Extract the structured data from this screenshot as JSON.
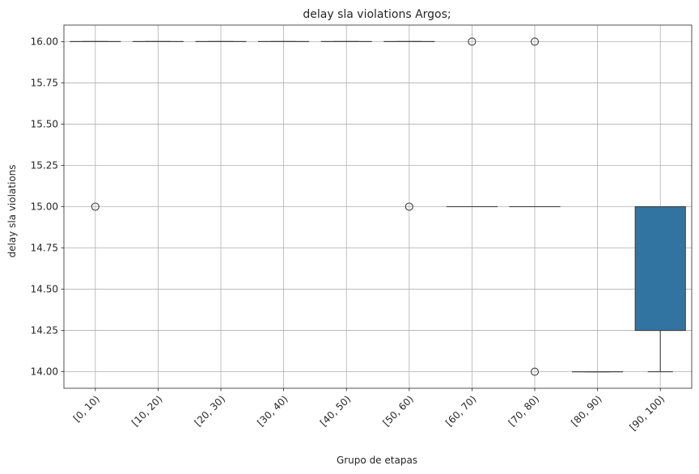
{
  "chart_data": {
    "type": "box",
    "title": "delay sla violations Argos;",
    "xlabel": "Grupo de etapas",
    "ylabel": "delay sla violations",
    "categories": [
      "[0, 10)",
      "[10, 20)",
      "[20, 30)",
      "[30, 40)",
      "[40, 50)",
      "[50, 60)",
      "[60, 70)",
      "[70, 80)",
      "[80, 90)",
      "[90, 100)"
    ],
    "yticks": [
      "14.00",
      "14.25",
      "14.50",
      "14.75",
      "15.00",
      "15.25",
      "15.50",
      "15.75",
      "16.00"
    ],
    "ylim": [
      13.9,
      16.1
    ],
    "grid": true,
    "box_color": "#3274a1",
    "boxes": [
      {
        "category": "[0, 10)",
        "min": 16,
        "q1": 16,
        "median": 16,
        "q3": 16,
        "max": 16,
        "outliers": [
          15
        ]
      },
      {
        "category": "[10, 20)",
        "min": 16,
        "q1": 16,
        "median": 16,
        "q3": 16,
        "max": 16,
        "outliers": []
      },
      {
        "category": "[20, 30)",
        "min": 16,
        "q1": 16,
        "median": 16,
        "q3": 16,
        "max": 16,
        "outliers": []
      },
      {
        "category": "[30, 40)",
        "min": 16,
        "q1": 16,
        "median": 16,
        "q3": 16,
        "max": 16,
        "outliers": []
      },
      {
        "category": "[40, 50)",
        "min": 16,
        "q1": 16,
        "median": 16,
        "q3": 16,
        "max": 16,
        "outliers": []
      },
      {
        "category": "[50, 60)",
        "min": 16,
        "q1": 16,
        "median": 16,
        "q3": 16,
        "max": 16,
        "outliers": [
          15
        ]
      },
      {
        "category": "[60, 70)",
        "min": 15,
        "q1": 15,
        "median": 15,
        "q3": 15,
        "max": 15,
        "outliers": [
          16
        ]
      },
      {
        "category": "[70, 80)",
        "min": 15,
        "q1": 15,
        "median": 15,
        "q3": 15,
        "max": 15,
        "outliers": [
          16,
          14
        ]
      },
      {
        "category": "[80, 90)",
        "min": 14,
        "q1": 14,
        "median": 14,
        "q3": 14,
        "max": 14,
        "outliers": []
      },
      {
        "category": "[90, 100)",
        "min": 14,
        "q1": 14.25,
        "median": 15,
        "q3": 15,
        "max": 15,
        "outliers": []
      }
    ]
  }
}
